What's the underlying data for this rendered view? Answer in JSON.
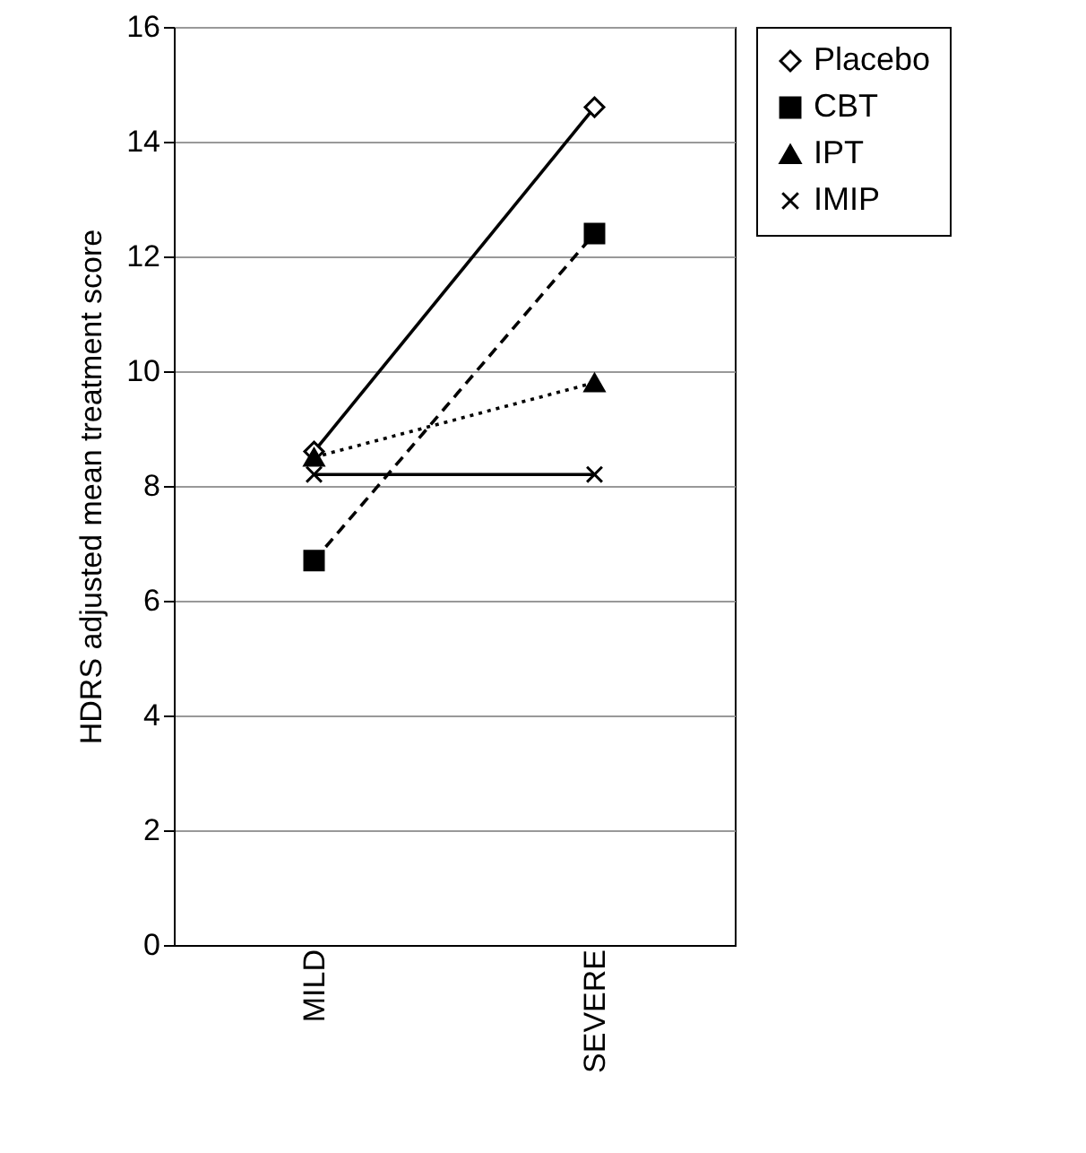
{
  "chart_data": {
    "type": "line",
    "ylabel": "HDRS adjusted mean treatment score",
    "categories": [
      "MILD",
      "SEVERE"
    ],
    "series": [
      {
        "name": "Placebo",
        "color": "#000000",
        "values": [
          8.6,
          14.6
        ],
        "marker": "diamond",
        "line_style": "solid"
      },
      {
        "name": "CBT",
        "color": "#000000",
        "values": [
          6.7,
          12.4
        ],
        "marker": "square",
        "line_style": "dashed"
      },
      {
        "name": "IPT",
        "color": "#000000",
        "values": [
          8.5,
          9.8
        ],
        "marker": "triangle",
        "line_style": "dotted"
      },
      {
        "name": "IMIP",
        "color": "#000000",
        "values": [
          8.2,
          8.2
        ],
        "marker": "cross",
        "line_style": "solid"
      }
    ],
    "ylim": [
      0,
      16
    ],
    "yticks": [
      0,
      2,
      4,
      6,
      8,
      10,
      12,
      14,
      16
    ],
    "grid": "y",
    "legend": "right"
  }
}
